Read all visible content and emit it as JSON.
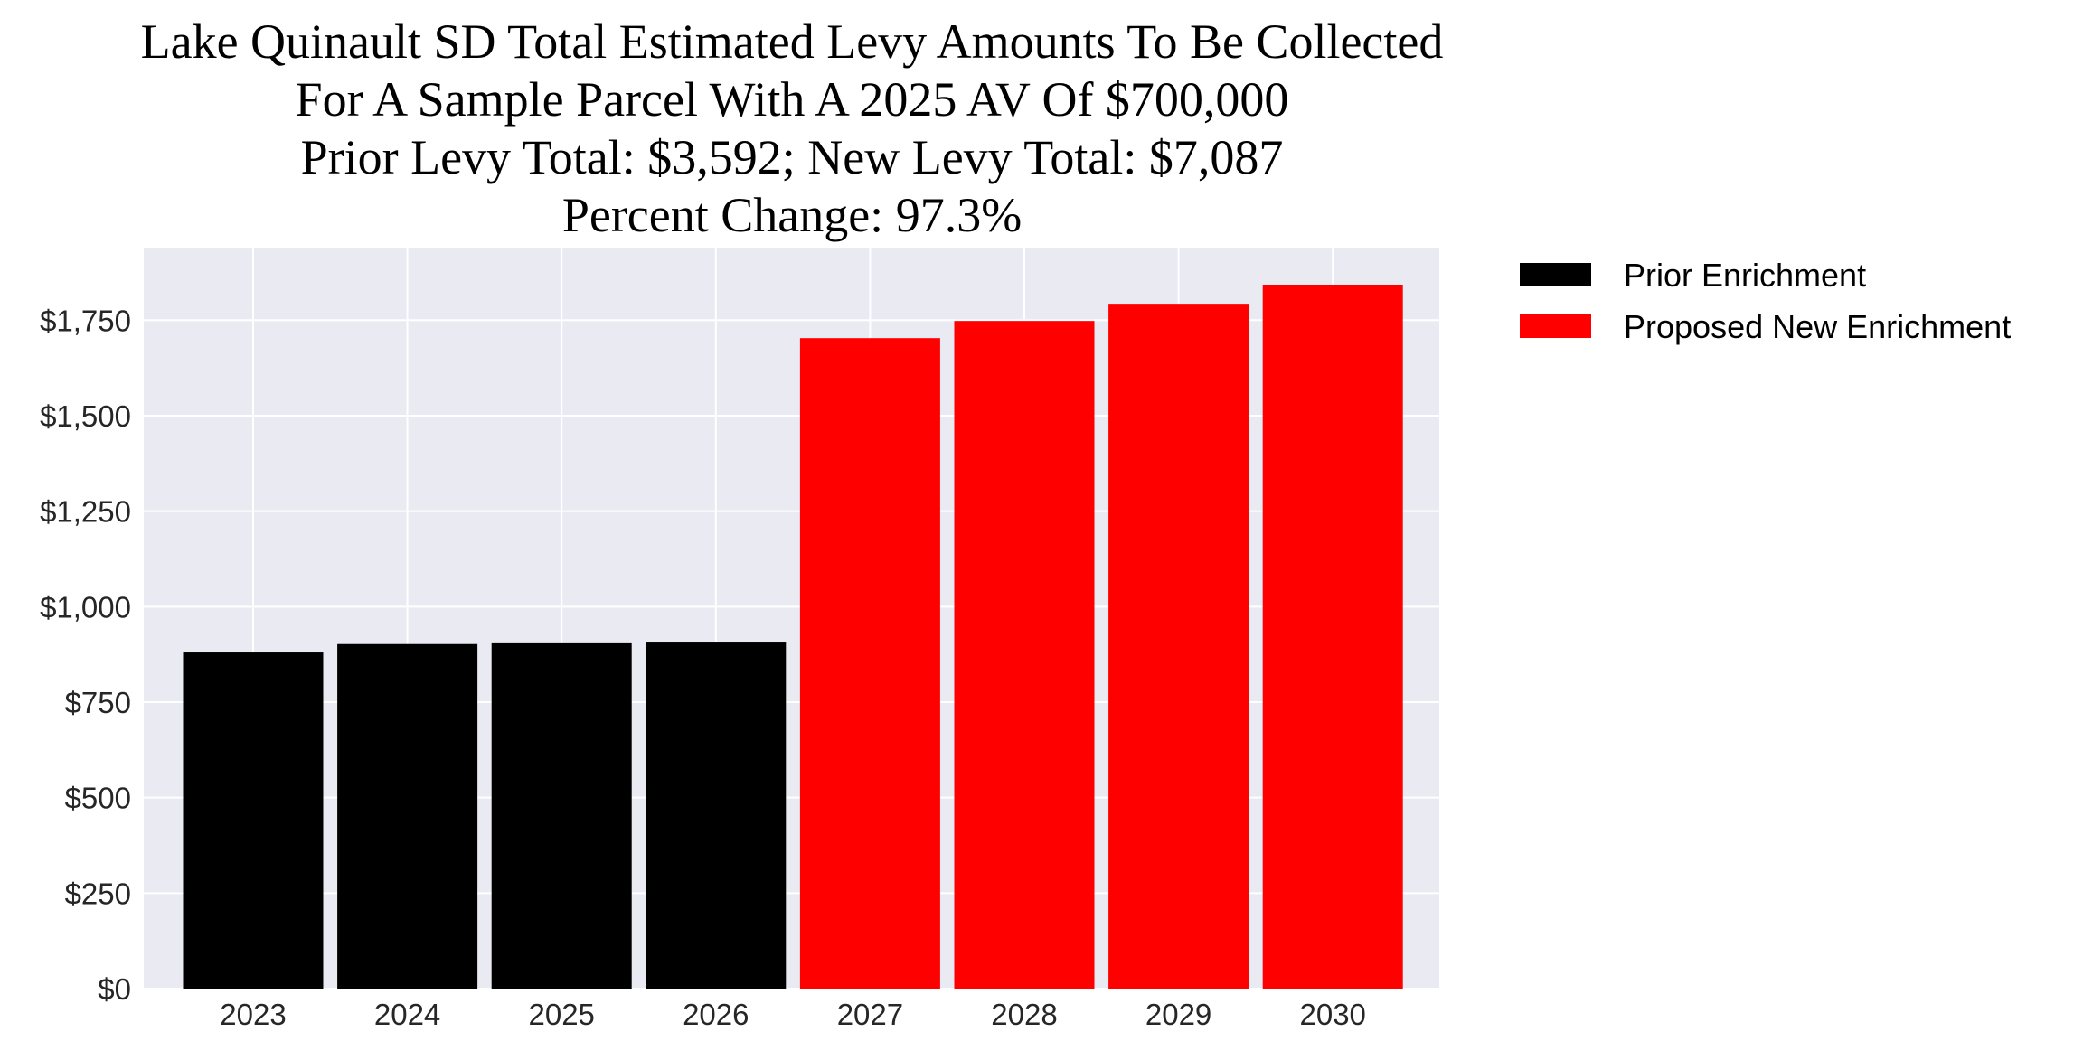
{
  "chart_data": {
    "type": "bar",
    "title_lines": [
      "Lake Quinault SD Total Estimated Levy Amounts To Be Collected",
      "For A Sample Parcel With A 2025 AV Of $700,000",
      "Prior Levy Total:  $3,592; New Levy Total: $7,087",
      "Percent Change: 97.3%"
    ],
    "xlabel": "",
    "ylabel": "",
    "categories": [
      "2023",
      "2024",
      "2025",
      "2026",
      "2027",
      "2028",
      "2029",
      "2030"
    ],
    "series": [
      {
        "name": "Prior Enrichment",
        "color": "#000000",
        "values": [
          880,
          902,
          904,
          906,
          null,
          null,
          null,
          null
        ]
      },
      {
        "name": "Proposed New Enrichment",
        "color": "#ff0000",
        "values": [
          null,
          null,
          null,
          null,
          1703,
          1748,
          1793,
          1843
        ]
      }
    ],
    "ylim": [
      0,
      1940
    ],
    "yticks": [
      0,
      250,
      500,
      750,
      1000,
      1250,
      1500,
      1750
    ],
    "ytick_labels": [
      "$0",
      "$250",
      "$500",
      "$750",
      "$1,000",
      "$1,250",
      "$1,500",
      "$1,750"
    ],
    "grid": true,
    "plot_background": "#eaeaf2",
    "legend_placement": "outside-top-right"
  }
}
